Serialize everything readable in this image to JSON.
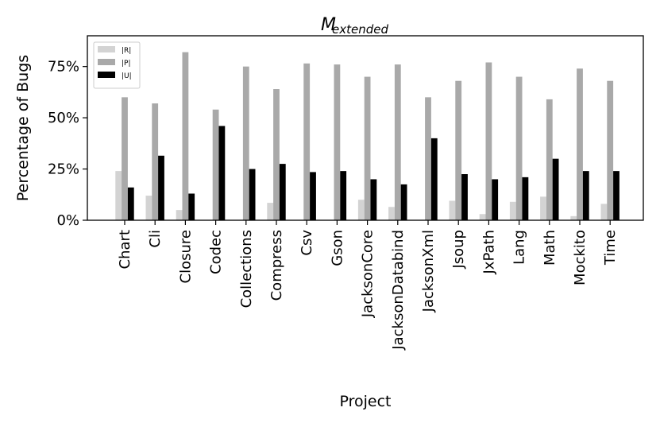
{
  "chart_data": {
    "type": "bar",
    "title": "M",
    "title_subscript": "extended",
    "xlabel": "Project",
    "ylabel": "Percentage of Bugs",
    "ylim": [
      0,
      90
    ],
    "yticks": [
      0,
      25,
      50,
      75
    ],
    "ytick_labels": [
      "0%",
      "25%",
      "50%",
      "75%"
    ],
    "legend_position": "top-left",
    "categories": [
      "Chart",
      "Cli",
      "Closure",
      "Codec",
      "Collections",
      "Compress",
      "Csv",
      "Gson",
      "JacksonCore",
      "JacksonDatabind",
      "JacksonXml",
      "Jsoup",
      "JxPath",
      "Lang",
      "Math",
      "Mockito",
      "Time"
    ],
    "series": [
      {
        "name": "|R|",
        "color": "#d3d3d3",
        "values": [
          24,
          12,
          5,
          0,
          0,
          8.5,
          0,
          0,
          10,
          6.5,
          0,
          9.5,
          3,
          9,
          11.5,
          2,
          8
        ]
      },
      {
        "name": "|P|",
        "color": "#a9a9a9",
        "values": [
          60,
          57,
          82,
          54,
          75,
          64,
          76.5,
          76,
          70,
          76,
          60,
          68,
          77,
          70,
          59,
          74,
          68
        ]
      },
      {
        "name": "|U|",
        "color": "#000000",
        "values": [
          16,
          31.5,
          13,
          46,
          25,
          27.5,
          23.5,
          24,
          20,
          17.5,
          40,
          22.5,
          20,
          21,
          30,
          24,
          24
        ]
      }
    ]
  }
}
